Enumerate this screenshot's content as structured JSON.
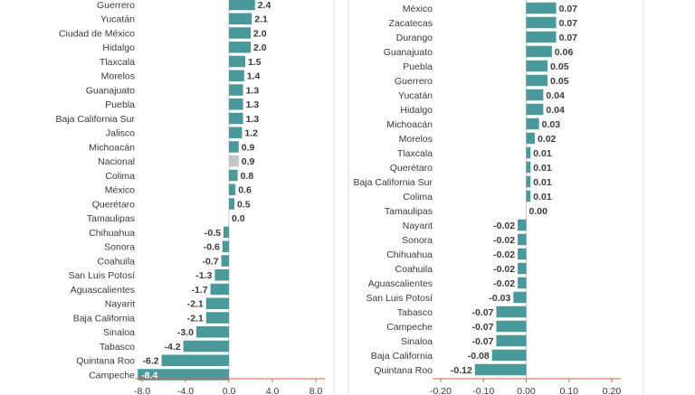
{
  "colors": {
    "bar": "#4a9a9b",
    "highlight": "#c4c4c4",
    "axis": "#d9603b",
    "text": "#3a3a3a"
  },
  "chart_data": [
    {
      "type": "bar",
      "orientation": "horizontal",
      "title": "",
      "xlabel": "",
      "ylabel": "",
      "xlim": [
        -8.0,
        8.0
      ],
      "xticks": [
        -8.0,
        -4.0,
        0.0,
        4.0,
        8.0
      ],
      "xtick_labels": [
        "-8.0",
        "-4.0",
        "0.0",
        "4.0",
        "8.0"
      ],
      "highlight": "Nacional",
      "categories": [
        "Guerrero",
        "Yucatán",
        "Ciudad de México",
        "Hidalgo",
        "Tlaxcala",
        "Morelos",
        "Guanajuato",
        "Puebla",
        "Baja California Sur",
        "Jalisco",
        "Michoacán",
        "Nacional",
        "Colima",
        "México",
        "Querétaro",
        "Tamaulipas",
        "Chihuahua",
        "Sonora",
        "Coahuila",
        "San Luis Potosí",
        "Aguascalientes",
        "Nayarit",
        "Baja California",
        "Sinaloa",
        "Tabasco",
        "Quintana Roo",
        "Campeche"
      ],
      "values": [
        2.4,
        2.1,
        2.0,
        2.0,
        1.5,
        1.4,
        1.3,
        1.3,
        1.3,
        1.2,
        0.9,
        0.9,
        0.8,
        0.6,
        0.5,
        0.0,
        -0.5,
        -0.6,
        -0.7,
        -1.3,
        -1.7,
        -2.1,
        -2.1,
        -3.0,
        -4.2,
        -6.2,
        -8.4
      ],
      "labels": [
        "2.4",
        "2.1",
        "2.0",
        "2.0",
        "1.5",
        "1.4",
        "1.3",
        "1.3",
        "1.3",
        "1.2",
        "0.9",
        "0.9",
        "0.8",
        "0.6",
        "0.5",
        "0.0",
        "-0.5",
        "-0.6",
        "-0.7",
        "-1.3",
        "-1.7",
        "-2.1",
        "-2.1",
        "-3.0",
        "-4.2",
        "-6.2",
        "-8.4"
      ]
    },
    {
      "type": "bar",
      "orientation": "horizontal",
      "title": "",
      "xlabel": "",
      "ylabel": "",
      "xlim": [
        -0.2,
        0.2
      ],
      "xticks": [
        -0.2,
        -0.1,
        0.0,
        0.1,
        0.2
      ],
      "xtick_labels": [
        "-0.20",
        "-0.10",
        "0.00",
        "0.10",
        "0.20"
      ],
      "highlight": "",
      "categories": [
        "México",
        "Zacatecas",
        "Durango",
        "Guanajuato",
        "Puebla",
        "Guerrero",
        "Yucatán",
        "Hidalgo",
        "Michoacán",
        "Morelos",
        "Tlaxcala",
        "Querétaro",
        "Baja California Sur",
        "Colima",
        "Tamaulipas",
        "Nayarit",
        "Sonora",
        "Chihuahua",
        "Coahuila",
        "Aguascalientes",
        "San Luis Potosí",
        "Tabasco",
        "Campeche",
        "Sinaloa",
        "Baja California",
        "Quintana Roo"
      ],
      "values": [
        0.07,
        0.07,
        0.07,
        0.06,
        0.05,
        0.05,
        0.04,
        0.04,
        0.03,
        0.02,
        0.01,
        0.01,
        0.01,
        0.01,
        0.0,
        -0.02,
        -0.02,
        -0.02,
        -0.02,
        -0.02,
        -0.03,
        -0.07,
        -0.07,
        -0.07,
        -0.08,
        -0.12
      ],
      "labels": [
        "0.07",
        "0.07",
        "0.07",
        "0.06",
        "0.05",
        "0.05",
        "0.04",
        "0.04",
        "0.03",
        "0.02",
        "0.01",
        "0.01",
        "0.01",
        "0.01",
        "0.00",
        "-0.02",
        "-0.02",
        "-0.02",
        "-0.02",
        "-0.02",
        "-0.03",
        "-0.07",
        "-0.07",
        "-0.07",
        "-0.08",
        "-0.12"
      ]
    }
  ]
}
